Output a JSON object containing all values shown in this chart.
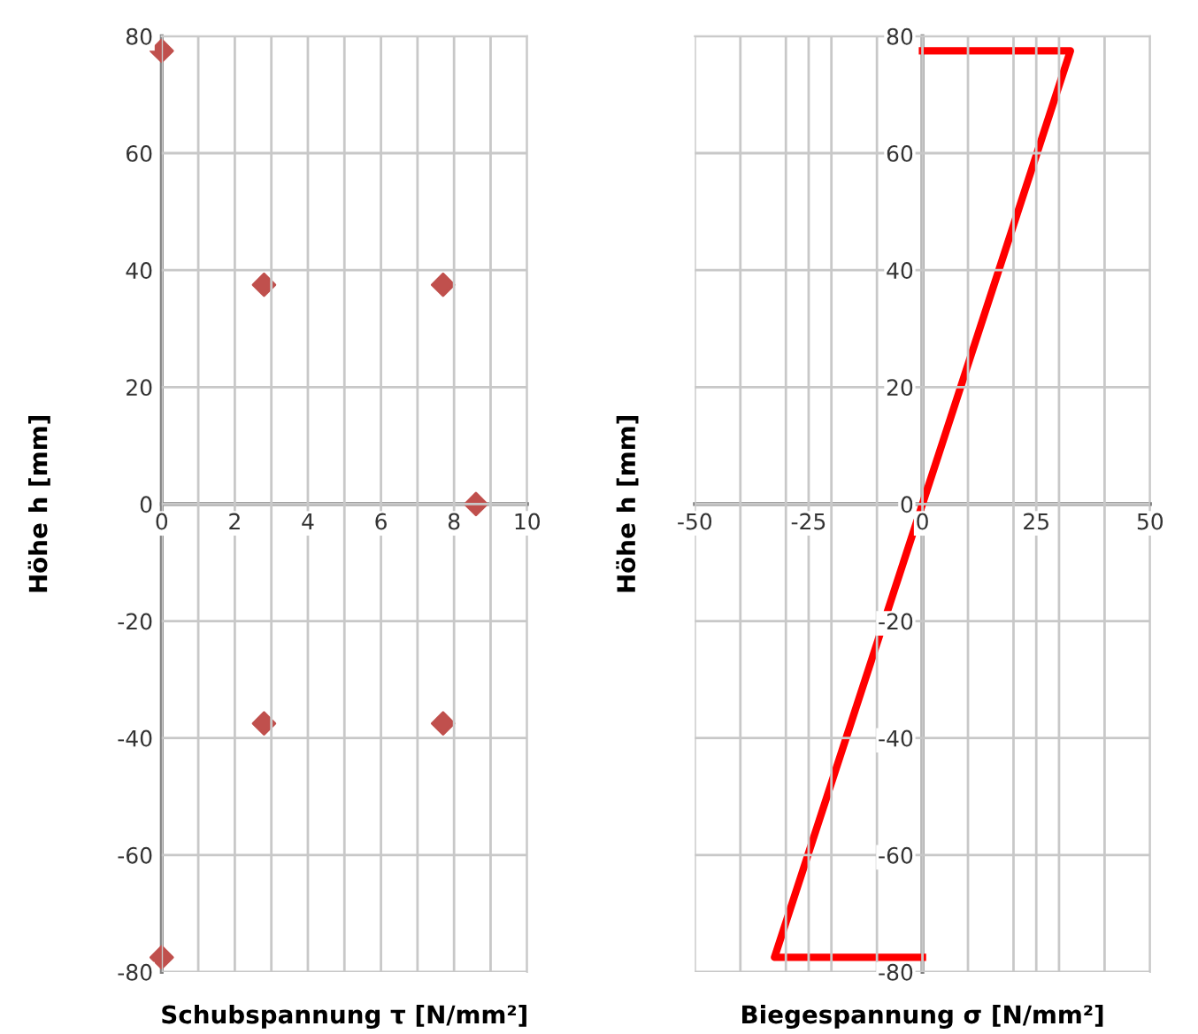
{
  "chart_data": [
    {
      "type": "scatter",
      "xlabel": "Schubspannung τ [N/mm²]",
      "ylabel": "Höhe h [mm]",
      "marker": "diamond",
      "grid": true,
      "legend": false,
      "series": [
        {
          "color": "#c0504d",
          "x": [
            0,
            2.8,
            7.7,
            8.6,
            7.7,
            2.8,
            0
          ],
          "values": [
            77.5,
            37.5,
            37.5,
            0,
            -37.5,
            -37.5,
            -77.5
          ]
        }
      ],
      "xlim": [
        0,
        10
      ],
      "ylim": [
        -80,
        80
      ],
      "xticks": [
        0,
        {
          "value": 1,
          "label": null
        },
        2,
        {
          "value": 3,
          "label": null
        },
        4,
        {
          "value": 5,
          "label": null
        },
        6,
        {
          "value": 7,
          "label": null
        },
        8,
        {
          "value": 9,
          "label": null
        },
        10
      ],
      "yticks": [
        -80,
        -60,
        -40,
        -20,
        0,
        20,
        40,
        60,
        80
      ]
    },
    {
      "type": "line",
      "xlabel": "Biegespannung σ [N/mm²]",
      "ylabel": "Höhe h [mm]",
      "marker": "none",
      "line_style": "solid",
      "grid": true,
      "legend": false,
      "series": [
        {
          "color": "#ff0000",
          "x": [
            0,
            32.5,
            -32.5,
            0
          ],
          "values": [
            77.5,
            77.5,
            -77.5,
            -77.5
          ]
        }
      ],
      "xlim": [
        -50,
        50
      ],
      "ylim": [
        -80,
        80
      ],
      "xticks": [
        -50,
        {
          "value": -40,
          "label": null
        },
        {
          "value": -30,
          "label": null
        },
        -25,
        {
          "value": -20,
          "label": null
        },
        {
          "value": -10,
          "label": null
        },
        0,
        {
          "value": 10,
          "label": null
        },
        {
          "value": 20,
          "label": null
        },
        25,
        {
          "value": 30,
          "label": null
        },
        {
          "value": 40,
          "label": null
        },
        50
      ],
      "yticks": [
        -80,
        -60,
        -40,
        -20,
        0,
        20,
        40,
        60,
        80
      ]
    }
  ]
}
